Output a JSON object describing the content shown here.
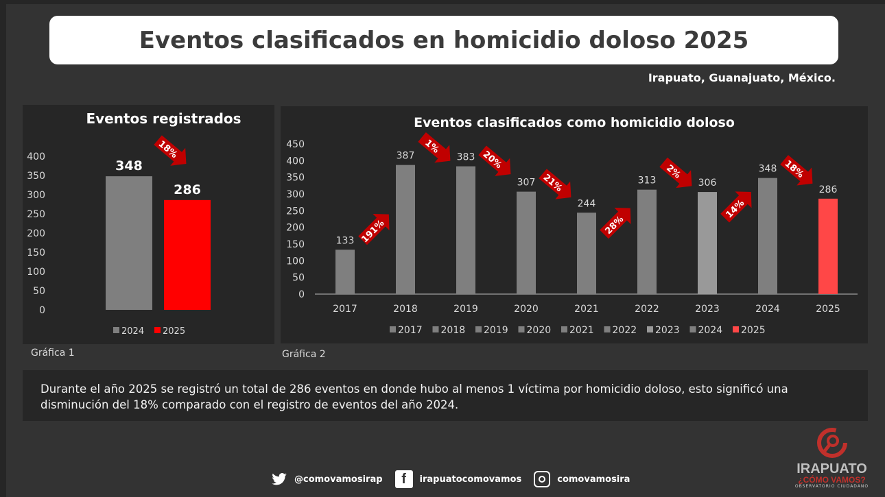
{
  "title": "Eventos clasificados en homicidio doloso 2025",
  "subtitle": "Irapuato, Guanajuato, México.",
  "chart_data": [
    {
      "type": "bar",
      "title": "Eventos registrados",
      "categories": [
        "2024",
        "2025"
      ],
      "values": [
        348,
        286
      ],
      "ylim": [
        0,
        400
      ],
      "yticks": [
        0,
        50,
        100,
        150,
        200,
        250,
        300,
        350,
        400
      ],
      "legend": [
        "2024",
        "2025"
      ],
      "legend_position": "bottom",
      "colors": [
        "#7f7f7f",
        "#ff0000"
      ],
      "annotations": [
        {
          "text": "18%",
          "direction": "down"
        }
      ],
      "caption": "Gráfica 1"
    },
    {
      "type": "bar",
      "title": "Eventos clasificados como homicidio doloso",
      "categories": [
        "2017",
        "2018",
        "2019",
        "2020",
        "2021",
        "2022",
        "2023",
        "2024",
        "2025"
      ],
      "values": [
        133,
        387,
        383,
        307,
        244,
        313,
        306,
        348,
        286
      ],
      "ylim": [
        0,
        450
      ],
      "yticks": [
        0,
        50,
        100,
        150,
        200,
        250,
        300,
        350,
        400,
        450
      ],
      "legend": [
        "2017",
        "2018",
        "2019",
        "2020",
        "2021",
        "2022",
        "2023",
        "2024",
        "2025"
      ],
      "legend_position": "bottom",
      "colors": [
        "#7f7f7f",
        "#7f7f7f",
        "#7f7f7f",
        "#7f7f7f",
        "#7f7f7f",
        "#7f7f7f",
        "#999999",
        "#7f7f7f",
        "#ff4747"
      ],
      "annotations": [
        {
          "text": "191%",
          "direction": "up"
        },
        {
          "text": "1%",
          "direction": "down"
        },
        {
          "text": "20%",
          "direction": "down"
        },
        {
          "text": "21%",
          "direction": "down"
        },
        {
          "text": "28%",
          "direction": "up"
        },
        {
          "text": "2%",
          "direction": "down"
        },
        {
          "text": "14%",
          "direction": "up"
        },
        {
          "text": "18%",
          "direction": "down"
        }
      ],
      "caption": "Gráfica 2"
    }
  ],
  "note": "Durante el año 2025 se registró un total de 286 eventos en donde hubo al menos 1 víctima por homicidio doloso, esto significó una disminución del 18% comparado con el registro de eventos del año 2024.",
  "footer": {
    "twitter": "@comovamosirap",
    "facebook": "irapuatocomovamos",
    "instagram": "comovamosira"
  },
  "logo": {
    "name": "IRAPUATO",
    "tagline": "¿CÓMO VAMOS?",
    "sub": "OBSERVATORIO CIUDADANO"
  }
}
